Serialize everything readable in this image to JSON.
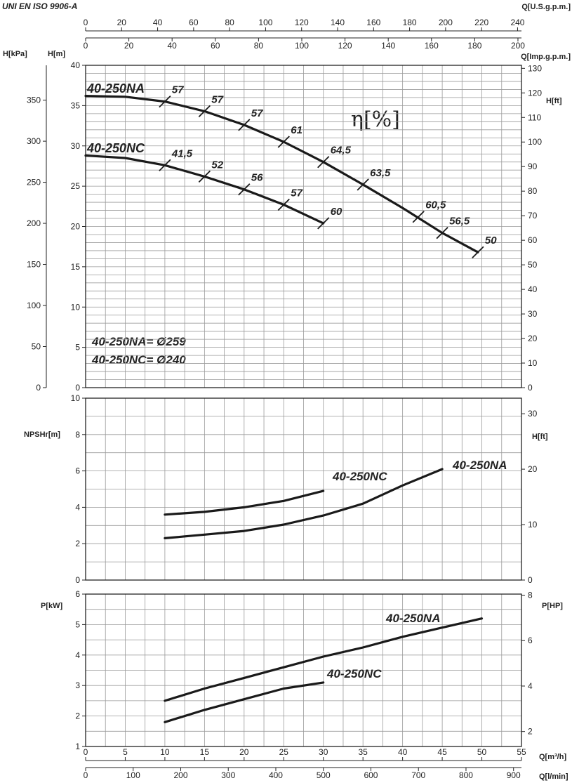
{
  "header": {
    "standard": "UNI EN ISO 9906-A"
  },
  "units": {
    "q_usgpm": "Q[U.S.g.p.m.]",
    "q_impgpm": "Q[Imp.g.p.m.]",
    "h_kpa": "H[kPa]",
    "h_m": "H[m]",
    "h_ft": "H[ft]",
    "npsh_m": "NPSHr[m]",
    "npsh_ft": "H[ft]",
    "p_kw": "P[kW]",
    "p_hp": "P[HP]",
    "q_m3h": "Q[m³/h]",
    "q_lmin": "Q[l/min]"
  },
  "legend": {
    "eta": "η[%]",
    "na_dia": "40-250NA= Ø259",
    "nc_dia": "40-250NC= Ø240"
  },
  "chart_data": [
    {
      "type": "line",
      "ylabel": "H[m]",
      "xlabel": "Q[m³/h]",
      "xlim": [
        0,
        55
      ],
      "ylim": [
        0,
        40
      ],
      "x_ticks": [
        "0",
        "5",
        "10",
        "15",
        "20",
        "25",
        "30",
        "35",
        "40",
        "45",
        "50",
        "55"
      ],
      "y_ticks": [
        "0",
        "5",
        "10",
        "15",
        "20",
        "25",
        "30",
        "35",
        "40"
      ],
      "kpa_ticks": [
        "0",
        "50",
        "100",
        "150",
        "200",
        "250",
        "300",
        "350"
      ],
      "ft_ticks": [
        "0",
        "10",
        "20",
        "30",
        "40",
        "50",
        "60",
        "70",
        "80",
        "90",
        "100",
        "110",
        "120",
        "130"
      ],
      "usgpm_ticks": [
        "0",
        "20",
        "40",
        "60",
        "80",
        "100",
        "120",
        "140",
        "160",
        "180",
        "200",
        "220",
        "240"
      ],
      "impgpm_ticks": [
        "0",
        "20",
        "40",
        "60",
        "80",
        "100",
        "120",
        "140",
        "160",
        "180",
        "200"
      ],
      "lmin_ticks": [
        "0",
        "100",
        "200",
        "300",
        "400",
        "500",
        "600",
        "700",
        "800",
        "900"
      ],
      "series": [
        {
          "name": "40-250NA",
          "x": [
            0,
            5,
            10,
            15,
            20,
            25,
            30,
            35,
            40,
            45,
            49.5
          ],
          "y": [
            36.2,
            36.1,
            35.5,
            34.3,
            32.6,
            30.5,
            28,
            25.2,
            22.3,
            19.2,
            16.8
          ],
          "eff_marks": [
            {
              "x": 10,
              "y": 35.5,
              "label": "57"
            },
            {
              "x": 15,
              "y": 34.3,
              "label": "57"
            },
            {
              "x": 20,
              "y": 32.6,
              "label": "57"
            },
            {
              "x": 25,
              "y": 30.5,
              "label": "61"
            },
            {
              "x": 30,
              "y": 28,
              "label": "64,5"
            },
            {
              "x": 35,
              "y": 25.2,
              "label": "63,5"
            },
            {
              "x": 42,
              "y": 21.2,
              "label": "60,5"
            },
            {
              "x": 45,
              "y": 19.2,
              "label": "56,5"
            },
            {
              "x": 49.5,
              "y": 16.8,
              "label": "50"
            }
          ]
        },
        {
          "name": "40-250NC",
          "x": [
            0,
            5,
            10,
            15,
            20,
            25,
            30
          ],
          "y": [
            28.8,
            28.5,
            27.6,
            26.2,
            24.6,
            22.7,
            20.4
          ],
          "eff_marks": [
            {
              "x": 10,
              "y": 27.6,
              "label": "41,5"
            },
            {
              "x": 15,
              "y": 26.2,
              "label": "52"
            },
            {
              "x": 20,
              "y": 24.6,
              "label": "56"
            },
            {
              "x": 25,
              "y": 22.7,
              "label": "57"
            },
            {
              "x": 30,
              "y": 20.4,
              "label": "60"
            }
          ]
        }
      ]
    },
    {
      "type": "line",
      "ylabel": "NPSHr[m]",
      "xlim": [
        0,
        55
      ],
      "ylim": [
        0,
        10
      ],
      "y_ticks": [
        "0",
        "2",
        "4",
        "6",
        "8",
        "10"
      ],
      "ft_ticks": [
        "0",
        "10",
        "20",
        "30"
      ],
      "series": [
        {
          "name": "40-250NC",
          "x": [
            10,
            15,
            20,
            25,
            30
          ],
          "y": [
            3.6,
            3.75,
            4.0,
            4.35,
            4.9
          ]
        },
        {
          "name": "40-250NA",
          "x": [
            10,
            15,
            20,
            25,
            30,
            35,
            40,
            45
          ],
          "y": [
            2.3,
            2.5,
            2.7,
            3.05,
            3.55,
            4.2,
            5.2,
            6.1
          ]
        }
      ]
    },
    {
      "type": "line",
      "ylabel": "P[kW]",
      "xlim": [
        0,
        55
      ],
      "ylim": [
        1,
        6
      ],
      "y_ticks": [
        "1",
        "2",
        "3",
        "4",
        "5",
        "6"
      ],
      "hp_ticks": [
        "2",
        "4",
        "6",
        "8"
      ],
      "series": [
        {
          "name": "40-250NA",
          "x": [
            10,
            15,
            20,
            25,
            30,
            35,
            40,
            45,
            50
          ],
          "y": [
            2.5,
            2.9,
            3.25,
            3.6,
            3.95,
            4.25,
            4.6,
            4.9,
            5.2
          ]
        },
        {
          "name": "40-250NC",
          "x": [
            10,
            15,
            20,
            25,
            30
          ],
          "y": [
            1.8,
            2.2,
            2.55,
            2.9,
            3.1
          ]
        }
      ]
    }
  ]
}
